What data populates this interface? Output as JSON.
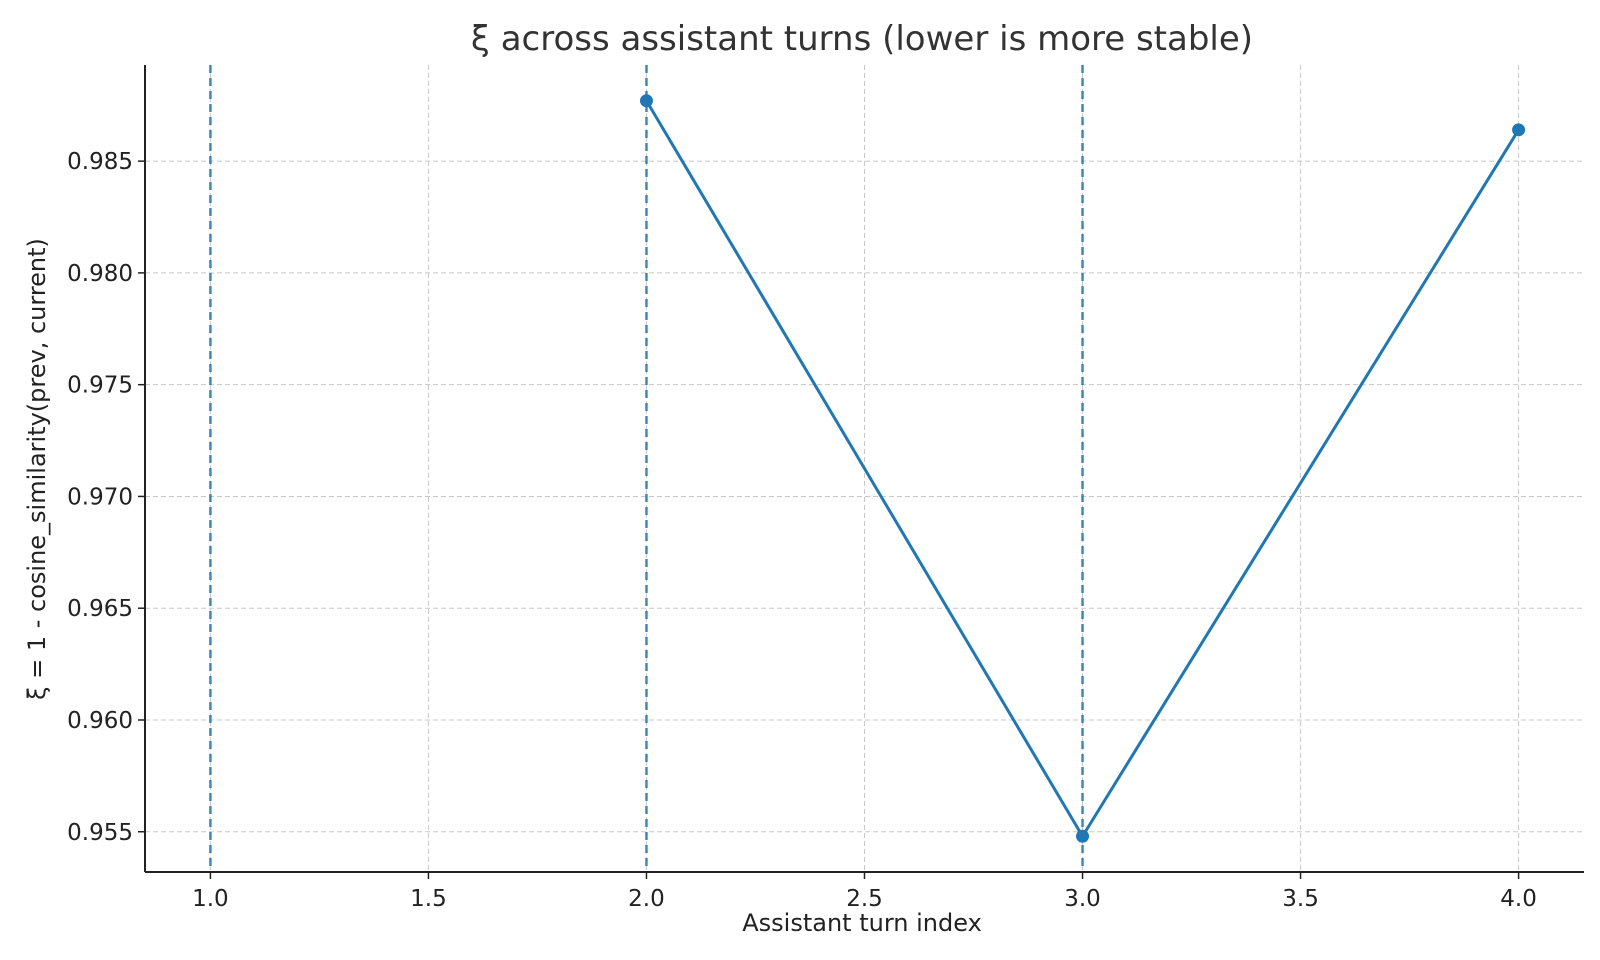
{
  "chart_data": {
    "type": "line",
    "title": "ξ across assistant turns (lower is more stable)",
    "xlabel": "Assistant turn index",
    "ylabel": "ξ = 1 - cosine_similarity(prev, current)",
    "xlim": [
      0.85,
      4.15
    ],
    "ylim": [
      0.9532,
      0.9893
    ],
    "xticks": [
      1.0,
      1.5,
      2.0,
      2.5,
      3.0,
      3.5,
      4.0
    ],
    "xtick_labels": [
      "1.0",
      "1.5",
      "2.0",
      "2.5",
      "3.0",
      "3.5",
      "4.0"
    ],
    "yticks": [
      0.955,
      0.96,
      0.965,
      0.97,
      0.975,
      0.98,
      0.985
    ],
    "ytick_labels": [
      "0.955",
      "0.960",
      "0.965",
      "0.970",
      "0.975",
      "0.980",
      "0.985"
    ],
    "grid": true,
    "series": [
      {
        "x": [
          2,
          3,
          4
        ],
        "y": [
          0.9877,
          0.9548,
          0.9864
        ],
        "color": "#1f77b4",
        "marker": "circle"
      }
    ],
    "vlines": [
      {
        "x": 1.0,
        "style": "dashed",
        "color": "#1f77b4"
      },
      {
        "x": 2.0,
        "style": "dashed",
        "color": "#1f77b4"
      },
      {
        "x": 3.0,
        "style": "dashed",
        "color": "#1f77b4"
      }
    ]
  }
}
